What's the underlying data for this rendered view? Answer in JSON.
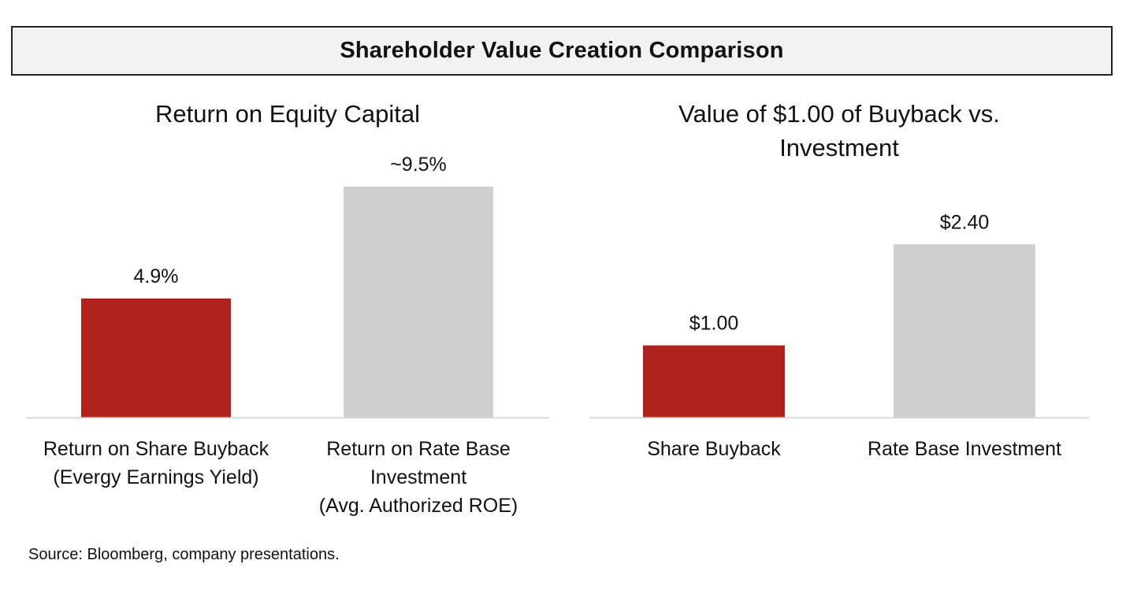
{
  "banner": {
    "title": "Shareholder Value Creation Comparison"
  },
  "colors": {
    "buyback": "#b0221b",
    "investment": "#d0cfd0",
    "axis": "#d9d9d9",
    "banner_bg": "#f2f2f2"
  },
  "chart_data": [
    {
      "type": "bar",
      "title": "Return on Equity Capital",
      "title_lines": [
        "Return on Equity Capital"
      ],
      "categories": [
        "Return on Share Buyback (Evergy Earnings Yield)",
        "Return on Rate Base Investment (Avg. Authorized ROE)"
      ],
      "category_lines": [
        [
          "Return on Share Buyback",
          "(Evergy Earnings Yield)"
        ],
        [
          "Return on Rate Base",
          "Investment",
          "(Avg. Authorized ROE)"
        ]
      ],
      "values": [
        4.9,
        9.5
      ],
      "labels": [
        "4.9%",
        "~9.5%"
      ],
      "ylim": [
        0,
        9.5
      ],
      "xlabel": "",
      "ylabel": "",
      "grid": false,
      "legend": "none"
    },
    {
      "type": "bar",
      "title": "Value of $1.00 of Buyback vs. Investment",
      "title_lines": [
        "Value of $1.00 of Buyback vs.",
        "Investment"
      ],
      "categories": [
        "Share Buyback",
        "Rate Base Investment"
      ],
      "category_lines": [
        [
          "Share Buyback"
        ],
        [
          "Rate Base Investment"
        ]
      ],
      "values": [
        1.0,
        2.4
      ],
      "labels": [
        "$1.00",
        "$2.40"
      ],
      "ylim": [
        0,
        3.2
      ],
      "xlabel": "",
      "ylabel": "",
      "grid": false,
      "legend": "none"
    }
  ],
  "footer": {
    "source": "Source: Bloomberg, company presentations."
  }
}
